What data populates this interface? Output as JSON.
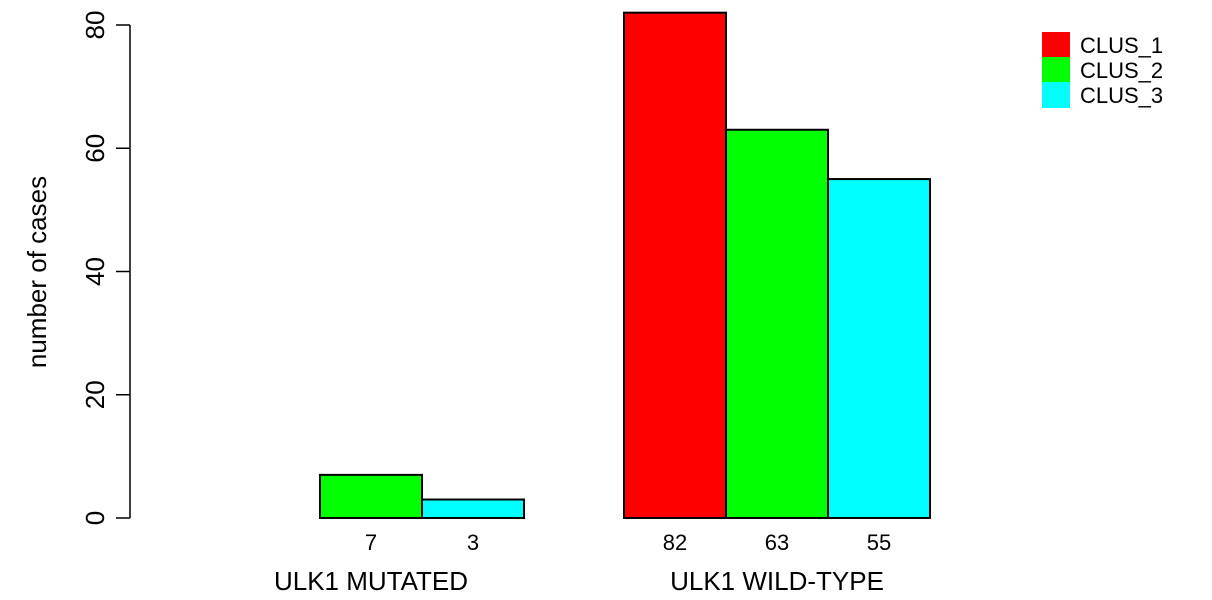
{
  "chart_data": {
    "type": "bar",
    "ylabel": "number of cases",
    "ylim": [
      0,
      80
    ],
    "yticks": [
      0,
      20,
      40,
      60,
      80
    ],
    "groups": [
      {
        "label": "ULK1 MUTATED",
        "values": [
          0,
          7,
          3
        ],
        "value_labels": [
          "",
          "7",
          "3"
        ]
      },
      {
        "label": "ULK1 WILD-TYPE",
        "values": [
          82,
          63,
          55
        ],
        "value_labels": [
          "82",
          "63",
          "55"
        ]
      }
    ],
    "series": [
      {
        "name": "CLUS_1",
        "color": "#ff0000"
      },
      {
        "name": "CLUS_2",
        "color": "#00ff00"
      },
      {
        "name": "CLUS_3",
        "color": "#00ffff"
      }
    ],
    "legend_position": "top-right",
    "grid": false
  }
}
